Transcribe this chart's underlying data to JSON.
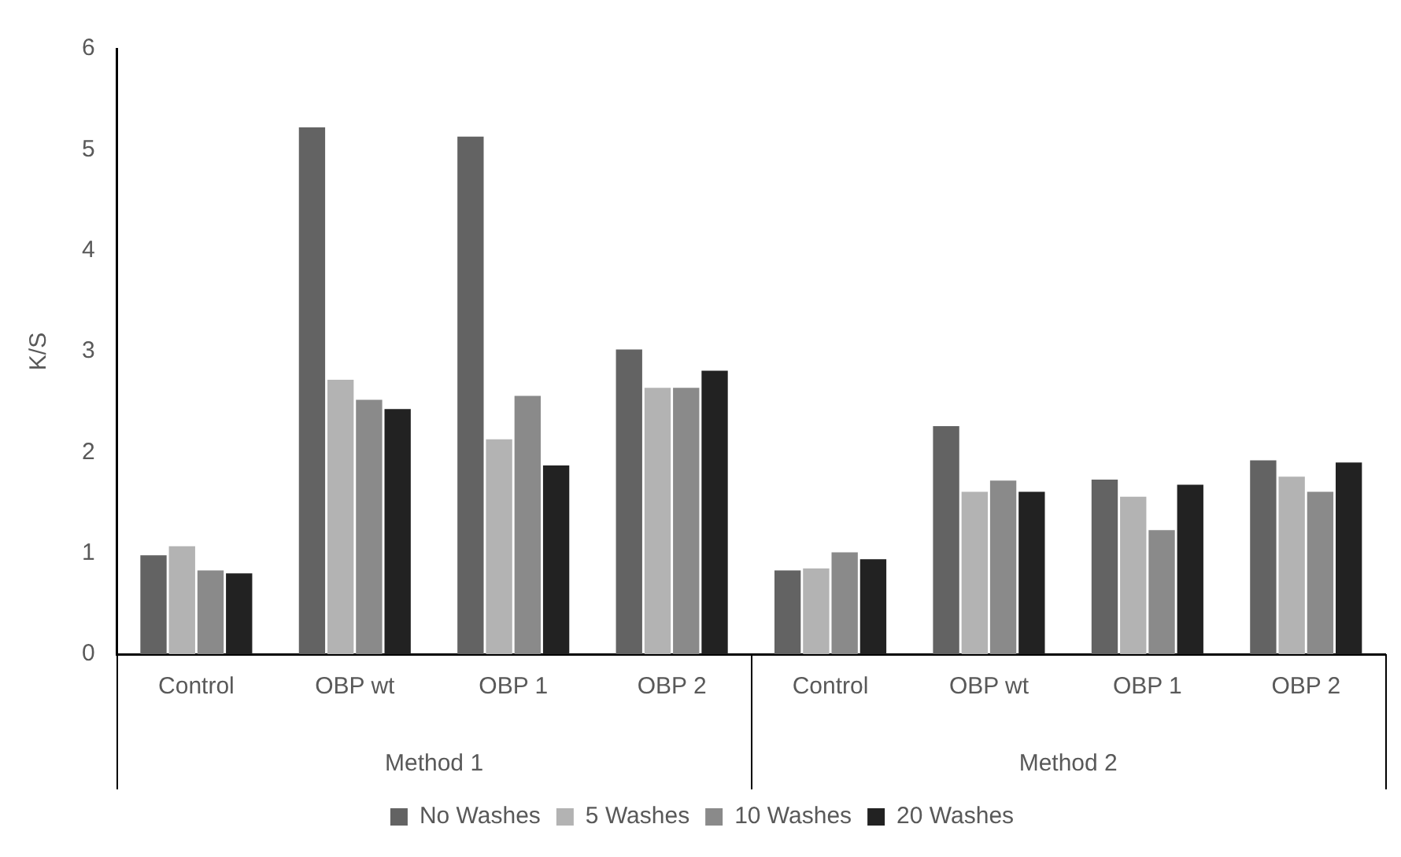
{
  "chart_data": {
    "type": "bar",
    "ylabel": "K/S",
    "categories": [
      "Control",
      "OBP wt",
      "OBP 1",
      "OBP 2",
      "Control",
      "OBP wt",
      "OBP 1",
      "OBP 2"
    ],
    "annotations": [
      "Method 1",
      "Method 2"
    ],
    "series": [
      {
        "name": "No Washes",
        "color": "#636363",
        "values": [
          0.98,
          5.22,
          5.13,
          3.02,
          0.83,
          2.26,
          1.73,
          1.92
        ]
      },
      {
        "name": "5 Washes",
        "color": "#b3b3b3",
        "values": [
          1.07,
          2.72,
          2.13,
          2.64,
          0.85,
          1.61,
          1.56,
          1.76
        ]
      },
      {
        "name": "10 Washes",
        "color": "#8a8a8a",
        "values": [
          0.83,
          2.52,
          2.56,
          2.64,
          1.01,
          1.72,
          1.23,
          1.61
        ]
      },
      {
        "name": "20 Washes",
        "color": "#222222",
        "values": [
          0.8,
          2.43,
          1.87,
          2.81,
          0.94,
          1.61,
          1.68,
          1.9
        ]
      }
    ],
    "ylim": [
      0,
      6
    ],
    "yticks": [
      0,
      1,
      2,
      3,
      4,
      5,
      6
    ],
    "grid": false,
    "legend": "bottom"
  }
}
